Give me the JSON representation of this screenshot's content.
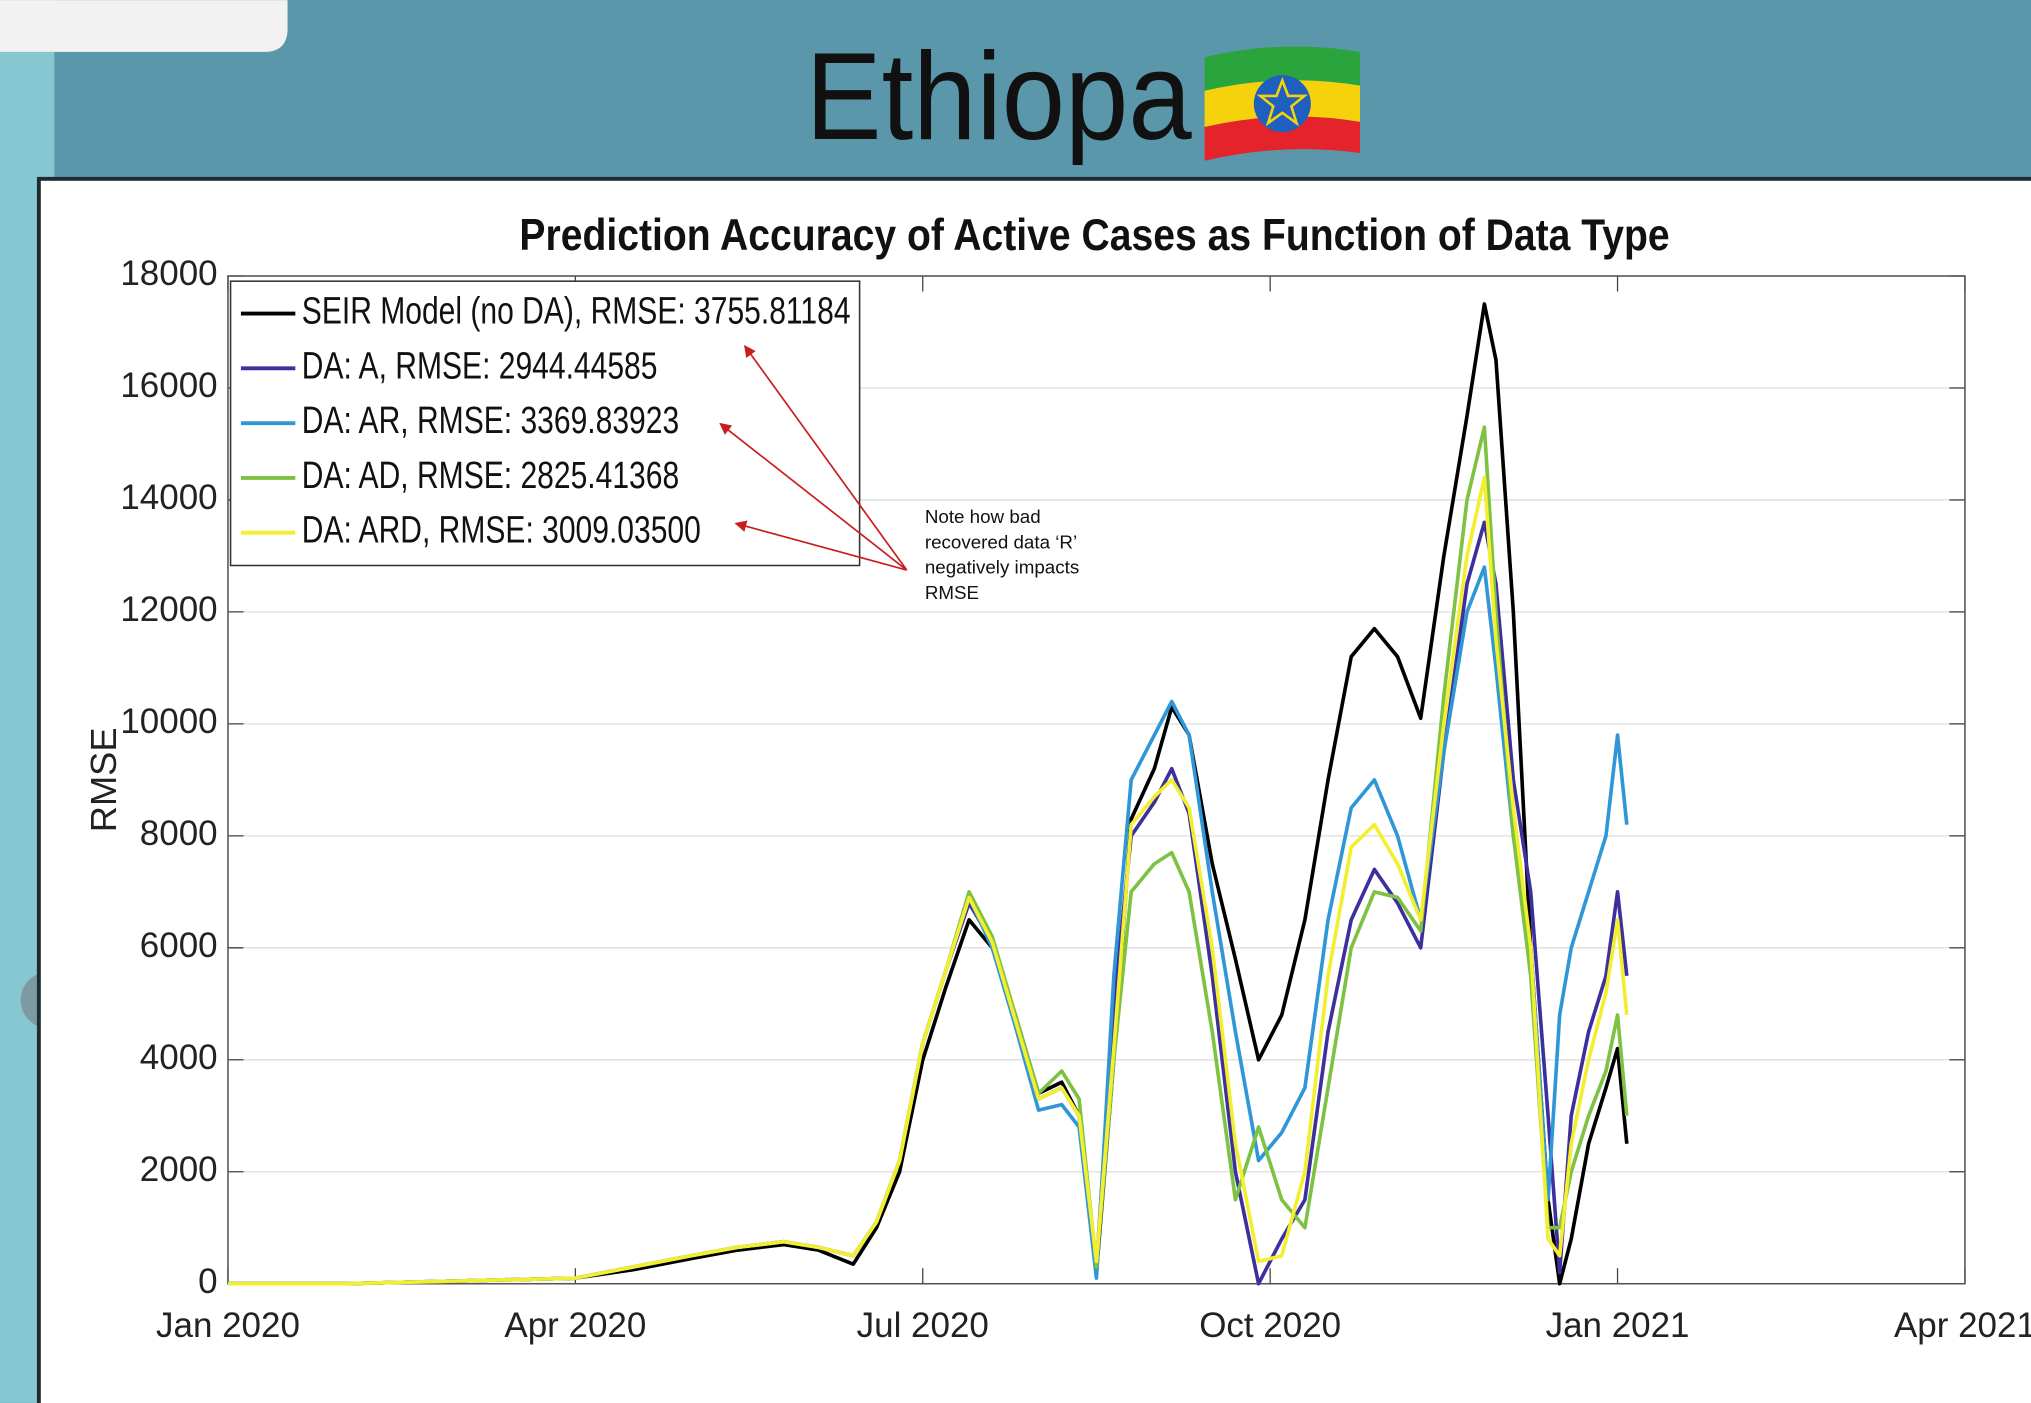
{
  "title": "Ethiopa",
  "chart_data": {
    "type": "line",
    "title": "Prediction Accuracy of Active Cases as Function of Data Type",
    "ylabel": "RMSE",
    "x": [
      0,
      1,
      2,
      3,
      3.5,
      4,
      4.4,
      4.8,
      5.1,
      5.4,
      5.6,
      5.8,
      6.0,
      6.2,
      6.4,
      6.6,
      6.8,
      7.0,
      7.2,
      7.35,
      7.5,
      7.65,
      7.8,
      8.0,
      8.15,
      8.3,
      8.5,
      8.7,
      8.9,
      9.1,
      9.3,
      9.5,
      9.7,
      9.9,
      10.1,
      10.3,
      10.5,
      10.7,
      10.85,
      10.95,
      11.1,
      11.25,
      11.4,
      11.5,
      11.6,
      11.75,
      11.9,
      12.0,
      12.08
    ],
    "xlim": [
      0,
      15
    ],
    "xticks": [
      {
        "value": 0,
        "label": "Jan 2020"
      },
      {
        "value": 3,
        "label": "Apr 2020"
      },
      {
        "value": 6,
        "label": "Jul 2020"
      },
      {
        "value": 9,
        "label": "Oct 2020"
      },
      {
        "value": 12,
        "label": "Jan 2021"
      },
      {
        "value": 15,
        "label": "Apr 2021"
      }
    ],
    "ylim": [
      0,
      18000
    ],
    "yticks": [
      0,
      2000,
      4000,
      6000,
      8000,
      10000,
      12000,
      14000,
      16000,
      18000
    ],
    "grid": "y",
    "legend": "upper-left",
    "series": [
      {
        "name": "SEIR Model (no DA), RMSE: 3755.81184",
        "color": "#000000",
        "values": [
          0,
          0,
          50,
          100,
          250,
          450,
          600,
          700,
          600,
          350,
          1000,
          2000,
          4000,
          5300,
          6500,
          6000,
          4800,
          3400,
          3600,
          3000,
          200,
          4000,
          8300,
          9200,
          10300,
          9800,
          7500,
          5800,
          4000,
          4800,
          6500,
          9000,
          11200,
          11700,
          11200,
          10100,
          13000,
          15500,
          17500,
          16500,
          12000,
          6000,
          1500,
          0,
          800,
          2500,
          3500,
          4200,
          2500
        ]
      },
      {
        "name": "DA: A, RMSE: 2944.44585",
        "color": "#3d2f9e",
        "values": [
          0,
          0,
          50,
          100,
          300,
          500,
          650,
          750,
          650,
          500,
          1100,
          2200,
          4300,
          5600,
          6800,
          6100,
          4800,
          3300,
          3500,
          3000,
          300,
          5000,
          8000,
          8600,
          9200,
          8400,
          5500,
          2000,
          0,
          800,
          1500,
          4500,
          6500,
          7400,
          6800,
          6000,
          9500,
          12500,
          13600,
          12500,
          9000,
          7000,
          3000,
          200,
          3000,
          4500,
          5500,
          7000,
          5500
        ]
      },
      {
        "name": "DA: AR, RMSE: 3369.83923",
        "color": "#2f97d8",
        "values": [
          0,
          0,
          50,
          100,
          300,
          500,
          650,
          750,
          650,
          500,
          1100,
          2200,
          4300,
          5600,
          6900,
          6000,
          4600,
          3100,
          3200,
          2800,
          100,
          5500,
          9000,
          9800,
          10400,
          9800,
          7000,
          4500,
          2200,
          2700,
          3500,
          6500,
          8500,
          9000,
          8000,
          6500,
          9500,
          12000,
          12800,
          11000,
          8000,
          6000,
          1500,
          4800,
          6000,
          7000,
          8000,
          9800,
          8200
        ]
      },
      {
        "name": "DA: AD, RMSE: 2825.41368",
        "color": "#7dc242",
        "values": [
          0,
          0,
          50,
          100,
          300,
          500,
          650,
          750,
          650,
          500,
          1100,
          2200,
          4300,
          5600,
          7000,
          6200,
          4800,
          3400,
          3800,
          3300,
          300,
          4000,
          7000,
          7500,
          7700,
          7000,
          4500,
          1500,
          2800,
          1500,
          1000,
          3500,
          6000,
          7000,
          6900,
          6300,
          10500,
          14000,
          15300,
          12000,
          8000,
          5500,
          1000,
          1000,
          2000,
          3000,
          3800,
          4800,
          3000
        ]
      },
      {
        "name": "DA: ARD, RMSE: 3009.03500",
        "color": "#f4ee30",
        "values": [
          0,
          0,
          50,
          100,
          300,
          500,
          650,
          750,
          650,
          500,
          1100,
          2200,
          4300,
          5600,
          6900,
          6100,
          4700,
          3300,
          3500,
          3000,
          400,
          4200,
          8200,
          8700,
          9000,
          8500,
          6000,
          2500,
          400,
          500,
          2000,
          5500,
          7800,
          8200,
          7500,
          6500,
          10000,
          13000,
          14400,
          11500,
          8500,
          6000,
          800,
          500,
          2500,
          4000,
          5200,
          6500,
          4800
        ]
      }
    ],
    "annotation": {
      "lines": [
        "Note how bad",
        "recovered data ‘R’",
        "negatively impacts",
        "RMSE"
      ]
    }
  }
}
